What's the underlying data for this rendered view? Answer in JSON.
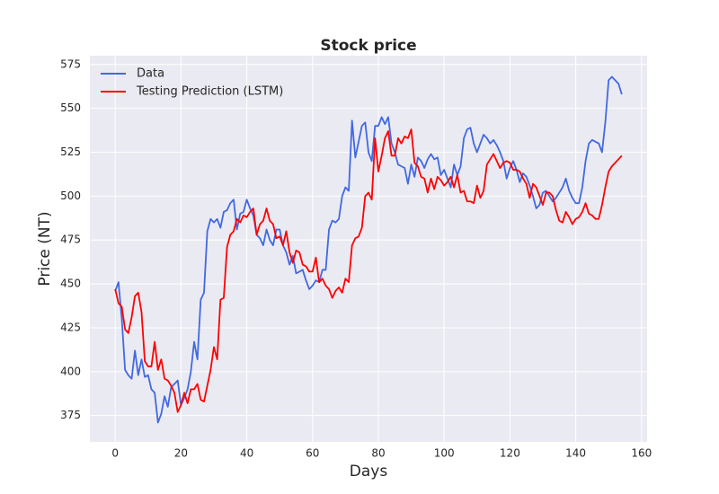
{
  "chart_data": {
    "type": "line",
    "title": "Stock price",
    "x_label": "Days",
    "y_label": "Price (NT)",
    "x": [
      0,
      1,
      2,
      3,
      4,
      5,
      6,
      7,
      8,
      9,
      10,
      11,
      12,
      13,
      14,
      15,
      16,
      17,
      18,
      19,
      20,
      21,
      22,
      23,
      24,
      25,
      26,
      27,
      28,
      29,
      30,
      31,
      32,
      33,
      34,
      35,
      36,
      37,
      38,
      39,
      40,
      41,
      42,
      43,
      44,
      45,
      46,
      47,
      48,
      49,
      50,
      51,
      52,
      53,
      54,
      55,
      56,
      57,
      58,
      59,
      60,
      61,
      62,
      63,
      64,
      65,
      66,
      67,
      68,
      69,
      70,
      71,
      72,
      73,
      74,
      75,
      76,
      77,
      78,
      79,
      80,
      81,
      82,
      83,
      84,
      85,
      86,
      87,
      88,
      89,
      90,
      91,
      92,
      93,
      94,
      95,
      96,
      97,
      98,
      99,
      100,
      101,
      102,
      103,
      104,
      105,
      106,
      107,
      108,
      109,
      110,
      111,
      112,
      113,
      114,
      115,
      116,
      117,
      118,
      119,
      120,
      121,
      122,
      123,
      124,
      125,
      126,
      127,
      128,
      129,
      130,
      131,
      132,
      133,
      134,
      135,
      136,
      137,
      138,
      139,
      140,
      141,
      142,
      143,
      144,
      145,
      146,
      147,
      148,
      149,
      150,
      151,
      152,
      153,
      154
    ],
    "series": [
      {
        "name": "Data",
        "color": "#4169e1",
        "values": [
          446,
          451,
          430,
          401,
          398,
          396,
          412,
          398,
          407,
          397,
          398,
          390,
          388,
          371,
          376,
          386,
          380,
          391,
          393,
          395,
          381,
          385,
          390,
          400,
          417,
          407,
          441,
          445,
          480,
          487,
          485,
          487,
          482,
          491,
          492,
          496,
          498,
          481,
          490,
          491,
          498,
          493,
          489,
          478,
          476,
          472,
          481,
          475,
          472,
          481,
          481,
          472,
          468,
          461,
          466,
          456,
          457,
          458,
          452,
          447,
          449,
          452,
          451,
          458,
          458,
          481,
          486,
          485,
          487,
          500,
          505,
          503,
          543,
          522,
          531,
          540,
          542,
          525,
          520,
          540,
          540,
          545,
          541,
          545,
          530,
          525,
          518,
          517,
          516,
          507,
          518,
          511,
          522,
          520,
          516,
          521,
          524,
          521,
          522,
          512,
          515,
          510,
          505,
          518,
          512,
          517,
          533,
          538,
          539,
          530,
          525,
          530,
          535,
          533,
          530,
          532,
          529,
          525,
          520,
          510,
          516,
          520,
          515,
          508,
          513,
          511,
          506,
          500,
          493,
          495,
          502,
          503,
          500,
          497,
          499,
          502,
          505,
          510,
          503,
          499,
          496,
          496,
          505,
          520,
          530,
          532,
          531,
          530,
          525,
          542,
          566,
          568,
          566,
          564,
          558
        ]
      },
      {
        "name": "Testing Prediction (LSTM)",
        "color": "#ff0000",
        "values": [
          447,
          439,
          437,
          424,
          422,
          431,
          443,
          445,
          434,
          406,
          403,
          403,
          417,
          401,
          407,
          396,
          395,
          392,
          388,
          377,
          381,
          388,
          382,
          390,
          390,
          393,
          384,
          383,
          392,
          401,
          414,
          407,
          441,
          442,
          471,
          478,
          480,
          487,
          485,
          489,
          488,
          491,
          493,
          478,
          484,
          486,
          493,
          486,
          484,
          476,
          477,
          472,
          480,
          468,
          462,
          469,
          468,
          461,
          460,
          457,
          457,
          465,
          451,
          453,
          449,
          447,
          442,
          446,
          448,
          445,
          453,
          451,
          472,
          476,
          477,
          482,
          500,
          502,
          498,
          533,
          514,
          523,
          533,
          537,
          523,
          523,
          533,
          530,
          534,
          533,
          538,
          519,
          517,
          511,
          510,
          502,
          510,
          504,
          511,
          509,
          506,
          508,
          511,
          505,
          512,
          502,
          503,
          497,
          497,
          496,
          506,
          499,
          503,
          518,
          521,
          524,
          520,
          516,
          519,
          520,
          519,
          515,
          515,
          514,
          510,
          507,
          499,
          507,
          505,
          500,
          495,
          502,
          502,
          500,
          492,
          486,
          485,
          491,
          488,
          484,
          487,
          488,
          491,
          496,
          490,
          489,
          487,
          487,
          495,
          505,
          514,
          517,
          519,
          521,
          523
        ]
      }
    ],
    "xlim": [
      -7.7,
      161.7
    ],
    "xticks": [
      0,
      20,
      40,
      60,
      80,
      100,
      120,
      140,
      160
    ],
    "ylim": [
      360,
      580
    ],
    "yticks": [
      375,
      400,
      425,
      450,
      475,
      500,
      525,
      550,
      575
    ],
    "grid": true,
    "legend": "upper-left"
  }
}
